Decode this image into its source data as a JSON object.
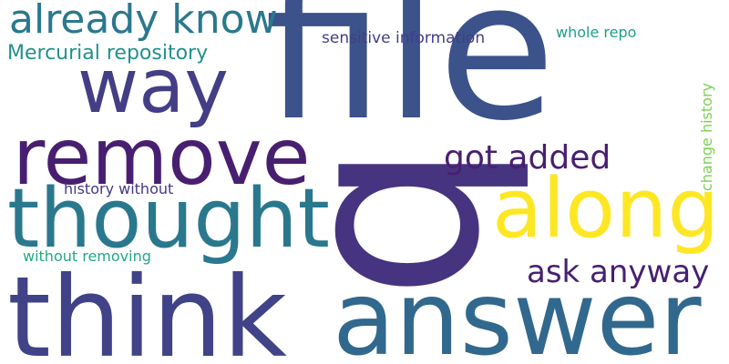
{
  "words": {
    "file": {
      "text": "file",
      "color": "#3b528b"
    },
    "think": {
      "text": "think",
      "color": "#404387"
    },
    "answer": {
      "text": "answer",
      "color": "#31688e"
    },
    "remove": {
      "text": "remove",
      "color": "#481f70"
    },
    "thought": {
      "text": "thought",
      "color": "#2a788e"
    },
    "already_know": {
      "text": "already know",
      "color": "#2a788e"
    },
    "way": {
      "text": "way",
      "color": "#433e85"
    },
    "q": {
      "text": "q",
      "color": "#463480"
    },
    "along": {
      "text": "along",
      "color": "#fde725"
    },
    "got_added": {
      "text": "got added",
      "color": "#481f70"
    },
    "ask_anyway": {
      "text": "ask anyway",
      "color": "#482071"
    },
    "mercurial_repository": {
      "text": "Mercurial repository",
      "color": "#21918c"
    },
    "sensitive_information": {
      "text": "sensitive information",
      "color": "#433e85"
    },
    "whole_repo": {
      "text": "whole repo",
      "color": "#1f9e89"
    },
    "change_history": {
      "text": "change history",
      "color": "#7ad151"
    },
    "history_without": {
      "text": "history without",
      "color": "#443983"
    },
    "without_removing": {
      "text": "without removing",
      "color": "#22a884"
    }
  }
}
